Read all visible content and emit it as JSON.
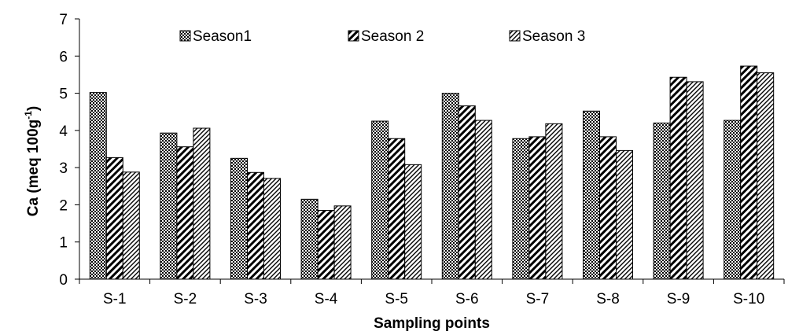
{
  "chart_data": {
    "type": "bar",
    "title": "",
    "xlabel": "Sampling points",
    "ylabel_main": "Ca (meq 100g",
    "ylabel_sup": "-1",
    "ylabel_close": ")",
    "ylim": [
      0,
      7
    ],
    "yticks": [
      "0",
      "1",
      "2",
      "3",
      "4",
      "5",
      "6",
      "7"
    ],
    "grid": false,
    "legend_position": "top-center",
    "categories": [
      "S-1",
      "S-2",
      "S-3",
      "S-4",
      "S-5",
      "S-6",
      "S-7",
      "S-8",
      "S-9",
      "S-10"
    ],
    "series": [
      {
        "name": "Season1",
        "pattern": "dots",
        "values": [
          5.02,
          3.93,
          3.25,
          2.15,
          4.25,
          5.0,
          3.78,
          4.52,
          4.2,
          4.27
        ]
      },
      {
        "name": "Season 2",
        "pattern": "diagonal",
        "values": [
          3.27,
          3.56,
          2.87,
          1.85,
          3.78,
          4.66,
          3.83,
          3.83,
          5.43,
          5.73
        ]
      },
      {
        "name": "Season 3",
        "pattern": "fine-diagonal",
        "values": [
          2.88,
          4.06,
          2.71,
          1.97,
          3.08,
          4.27,
          4.18,
          3.46,
          5.31,
          5.55
        ]
      }
    ]
  }
}
